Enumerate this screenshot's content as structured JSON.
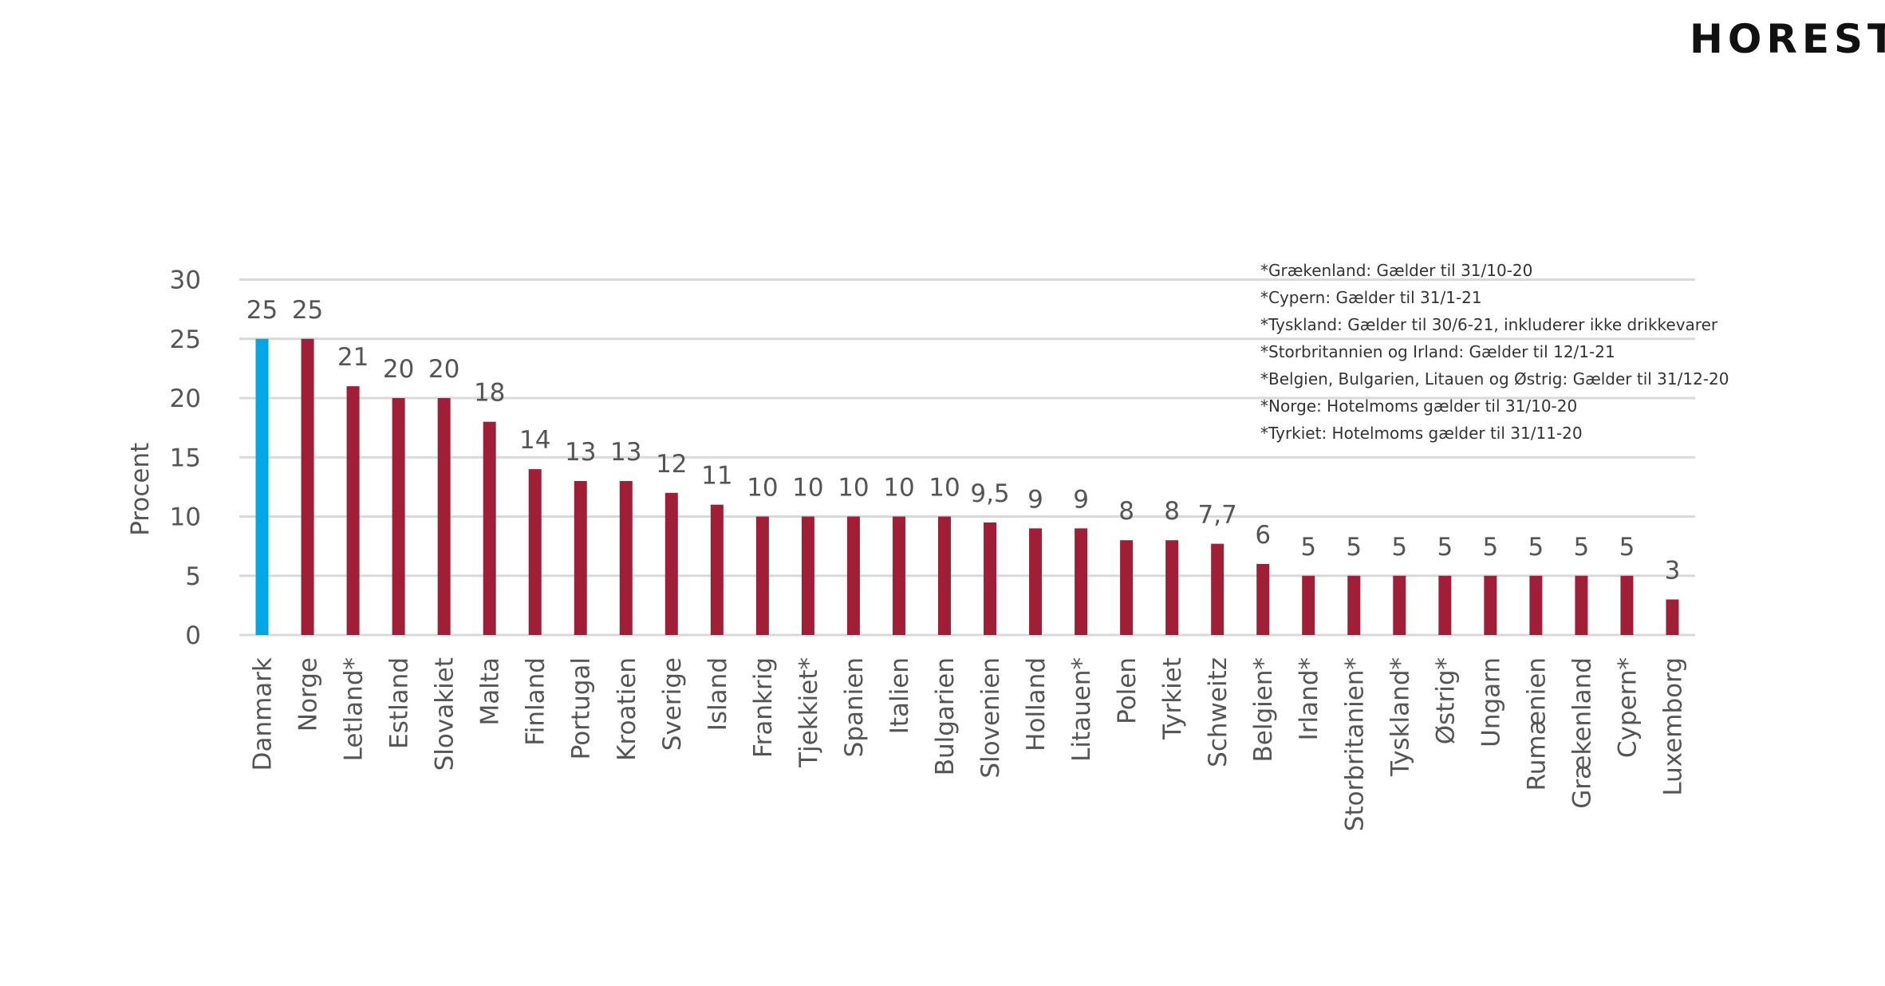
{
  "logo_text": "HORESTA",
  "colors": {
    "highlight": "#00a6e6",
    "bar": "#a01f36",
    "grid": "#d9d9d9"
  },
  "notes": [
    "*Grækenland: Gælder til 31/10-20",
    "*Cypern: Gælder til 31/1-21",
    "*Tyskland: Gælder til 30/6-21, inkluderer ikke drikkevarer",
    "*Storbritannien og Irland: Gælder til 12/1-21",
    "*Belgien, Bulgarien, Litauen og Østrig: Gælder til 31/12-20",
    "*Norge: Hotelmoms gælder til 31/10-20",
    "*Tyrkiet: Hotelmoms gælder til 31/11-20"
  ],
  "chart_data": {
    "type": "bar",
    "ylabel": "Procent",
    "ylim": [
      0,
      30
    ],
    "yticks": [
      0,
      5,
      10,
      15,
      20,
      25,
      30
    ],
    "grid": true,
    "highlight_category": "Danmark",
    "categories": [
      "Danmark",
      "Norge",
      "Letland*",
      "Estland",
      "Slovakiet",
      "Malta",
      "Finland",
      "Portugal",
      "Kroatien",
      "Sverige",
      "Island",
      "Frankrig",
      "Tjekkiet*",
      "Spanien",
      "Italien",
      "Bulgarien",
      "Slovenien",
      "Holland",
      "Litauen*",
      "Polen",
      "Tyrkiet",
      "Schweitz",
      "Belgien*",
      "Irland*",
      "Storbritanien*",
      "Tyskland*",
      "Østrig*",
      "Ungarn",
      "Rumænien",
      "Grækenland",
      "Cypern*",
      "Luxemborg"
    ],
    "values": [
      25,
      25,
      21,
      20,
      20,
      18,
      14,
      13,
      13,
      12,
      11,
      10,
      10,
      10,
      10,
      10,
      9.5,
      9,
      9,
      8,
      8,
      7.7,
      6,
      5,
      5,
      5,
      5,
      5,
      5,
      5,
      5,
      3
    ],
    "value_labels": [
      "25",
      "25",
      "21",
      "20",
      "20",
      "18",
      "14",
      "13",
      "13",
      "12",
      "11",
      "10",
      "10",
      "10",
      "10",
      "10",
      "9,5",
      "9",
      "9",
      "8",
      "8",
      "7,7",
      "6",
      "5",
      "5",
      "5",
      "5",
      "5",
      "5",
      "5",
      "5",
      "3"
    ]
  }
}
